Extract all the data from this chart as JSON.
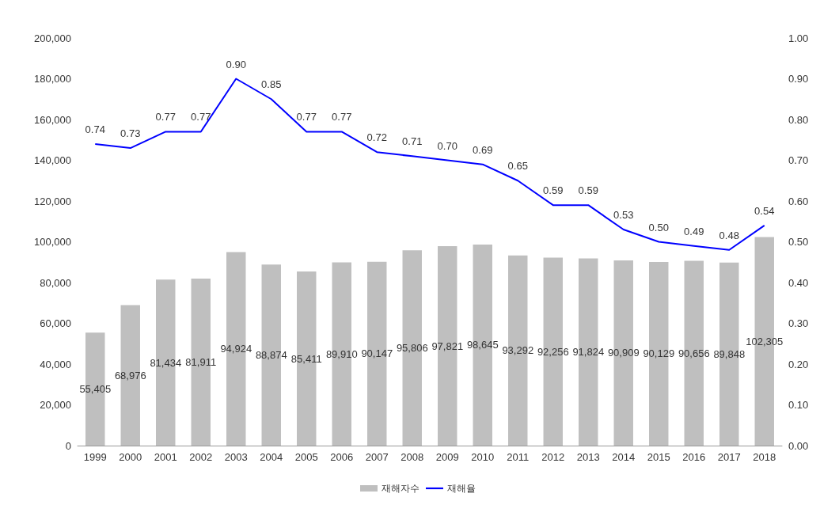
{
  "chart_data": {
    "type": "bar",
    "categories": [
      "1999",
      "2000",
      "2001",
      "2002",
      "2003",
      "2004",
      "2005",
      "2006",
      "2007",
      "2008",
      "2009",
      "2010",
      "2011",
      "2012",
      "2013",
      "2014",
      "2015",
      "2016",
      "2017",
      "2018"
    ],
    "series": [
      {
        "name": "재해자수",
        "color": "#bfbfbf",
        "values": [
          55405,
          68976,
          81434,
          81911,
          94924,
          88874,
          85411,
          89910,
          90147,
          95806,
          97821,
          98645,
          93292,
          92256,
          91824,
          90909,
          90129,
          90656,
          89848,
          102305
        ],
        "value_labels": [
          "55,405",
          "68,976",
          "81,434",
          "81,911",
          "94,924",
          "88,874",
          "85,411",
          "89,910",
          "90,147",
          "95,806",
          "97,821",
          "98,645",
          "93,292",
          "92,256",
          "91,824",
          "90,909",
          "90,129",
          "90,656",
          "89,848",
          "102,305"
        ]
      },
      {
        "name": "재해율",
        "type": "line",
        "axis": "y2",
        "color": "#0000ff",
        "values": [
          0.74,
          0.73,
          0.77,
          0.77,
          0.9,
          0.85,
          0.77,
          0.77,
          0.72,
          0.71,
          0.7,
          0.69,
          0.65,
          0.59,
          0.59,
          0.53,
          0.5,
          0.49,
          0.48,
          0.54
        ],
        "value_labels": [
          "0.74",
          "0.73",
          "0.77",
          "0.77",
          "0.90",
          "0.85",
          "0.77",
          "0.77",
          "0.72",
          "0.71",
          "0.70",
          "0.69",
          "0.65",
          "0.59",
          "0.59",
          "0.53",
          "0.50",
          "0.49",
          "0.48",
          "0.54"
        ]
      }
    ],
    "ylim": [
      0,
      200000
    ],
    "yticks": [
      {
        "value": 0,
        "label": "0"
      },
      {
        "value": 20000,
        "label": "20,000"
      },
      {
        "value": 40000,
        "label": "40,000"
      },
      {
        "value": 60000,
        "label": "60,000"
      },
      {
        "value": 80000,
        "label": "80,000"
      },
      {
        "value": 100000,
        "label": "100,000"
      },
      {
        "value": 120000,
        "label": "120,000"
      },
      {
        "value": 140000,
        "label": "140,000"
      },
      {
        "value": 160000,
        "label": "160,000"
      },
      {
        "value": 180000,
        "label": "180,000"
      },
      {
        "value": 200000,
        "label": "200,000"
      }
    ],
    "y2lim": [
      0,
      1
    ],
    "y2ticks": [
      {
        "value": 0,
        "label": "0.00"
      },
      {
        "value": 0.1,
        "label": "0.10"
      },
      {
        "value": 0.2,
        "label": "0.20"
      },
      {
        "value": 0.3,
        "label": "0.30"
      },
      {
        "value": 0.4,
        "label": "0.40"
      },
      {
        "value": 0.5,
        "label": "0.50"
      },
      {
        "value": 0.6,
        "label": "0.60"
      },
      {
        "value": 0.7,
        "label": "0.70"
      },
      {
        "value": 0.8,
        "label": "0.80"
      },
      {
        "value": 0.9,
        "label": "0.90"
      },
      {
        "value": 1,
        "label": "1.00"
      }
    ],
    "grid": false,
    "legend": "bottom",
    "marker": "none"
  }
}
